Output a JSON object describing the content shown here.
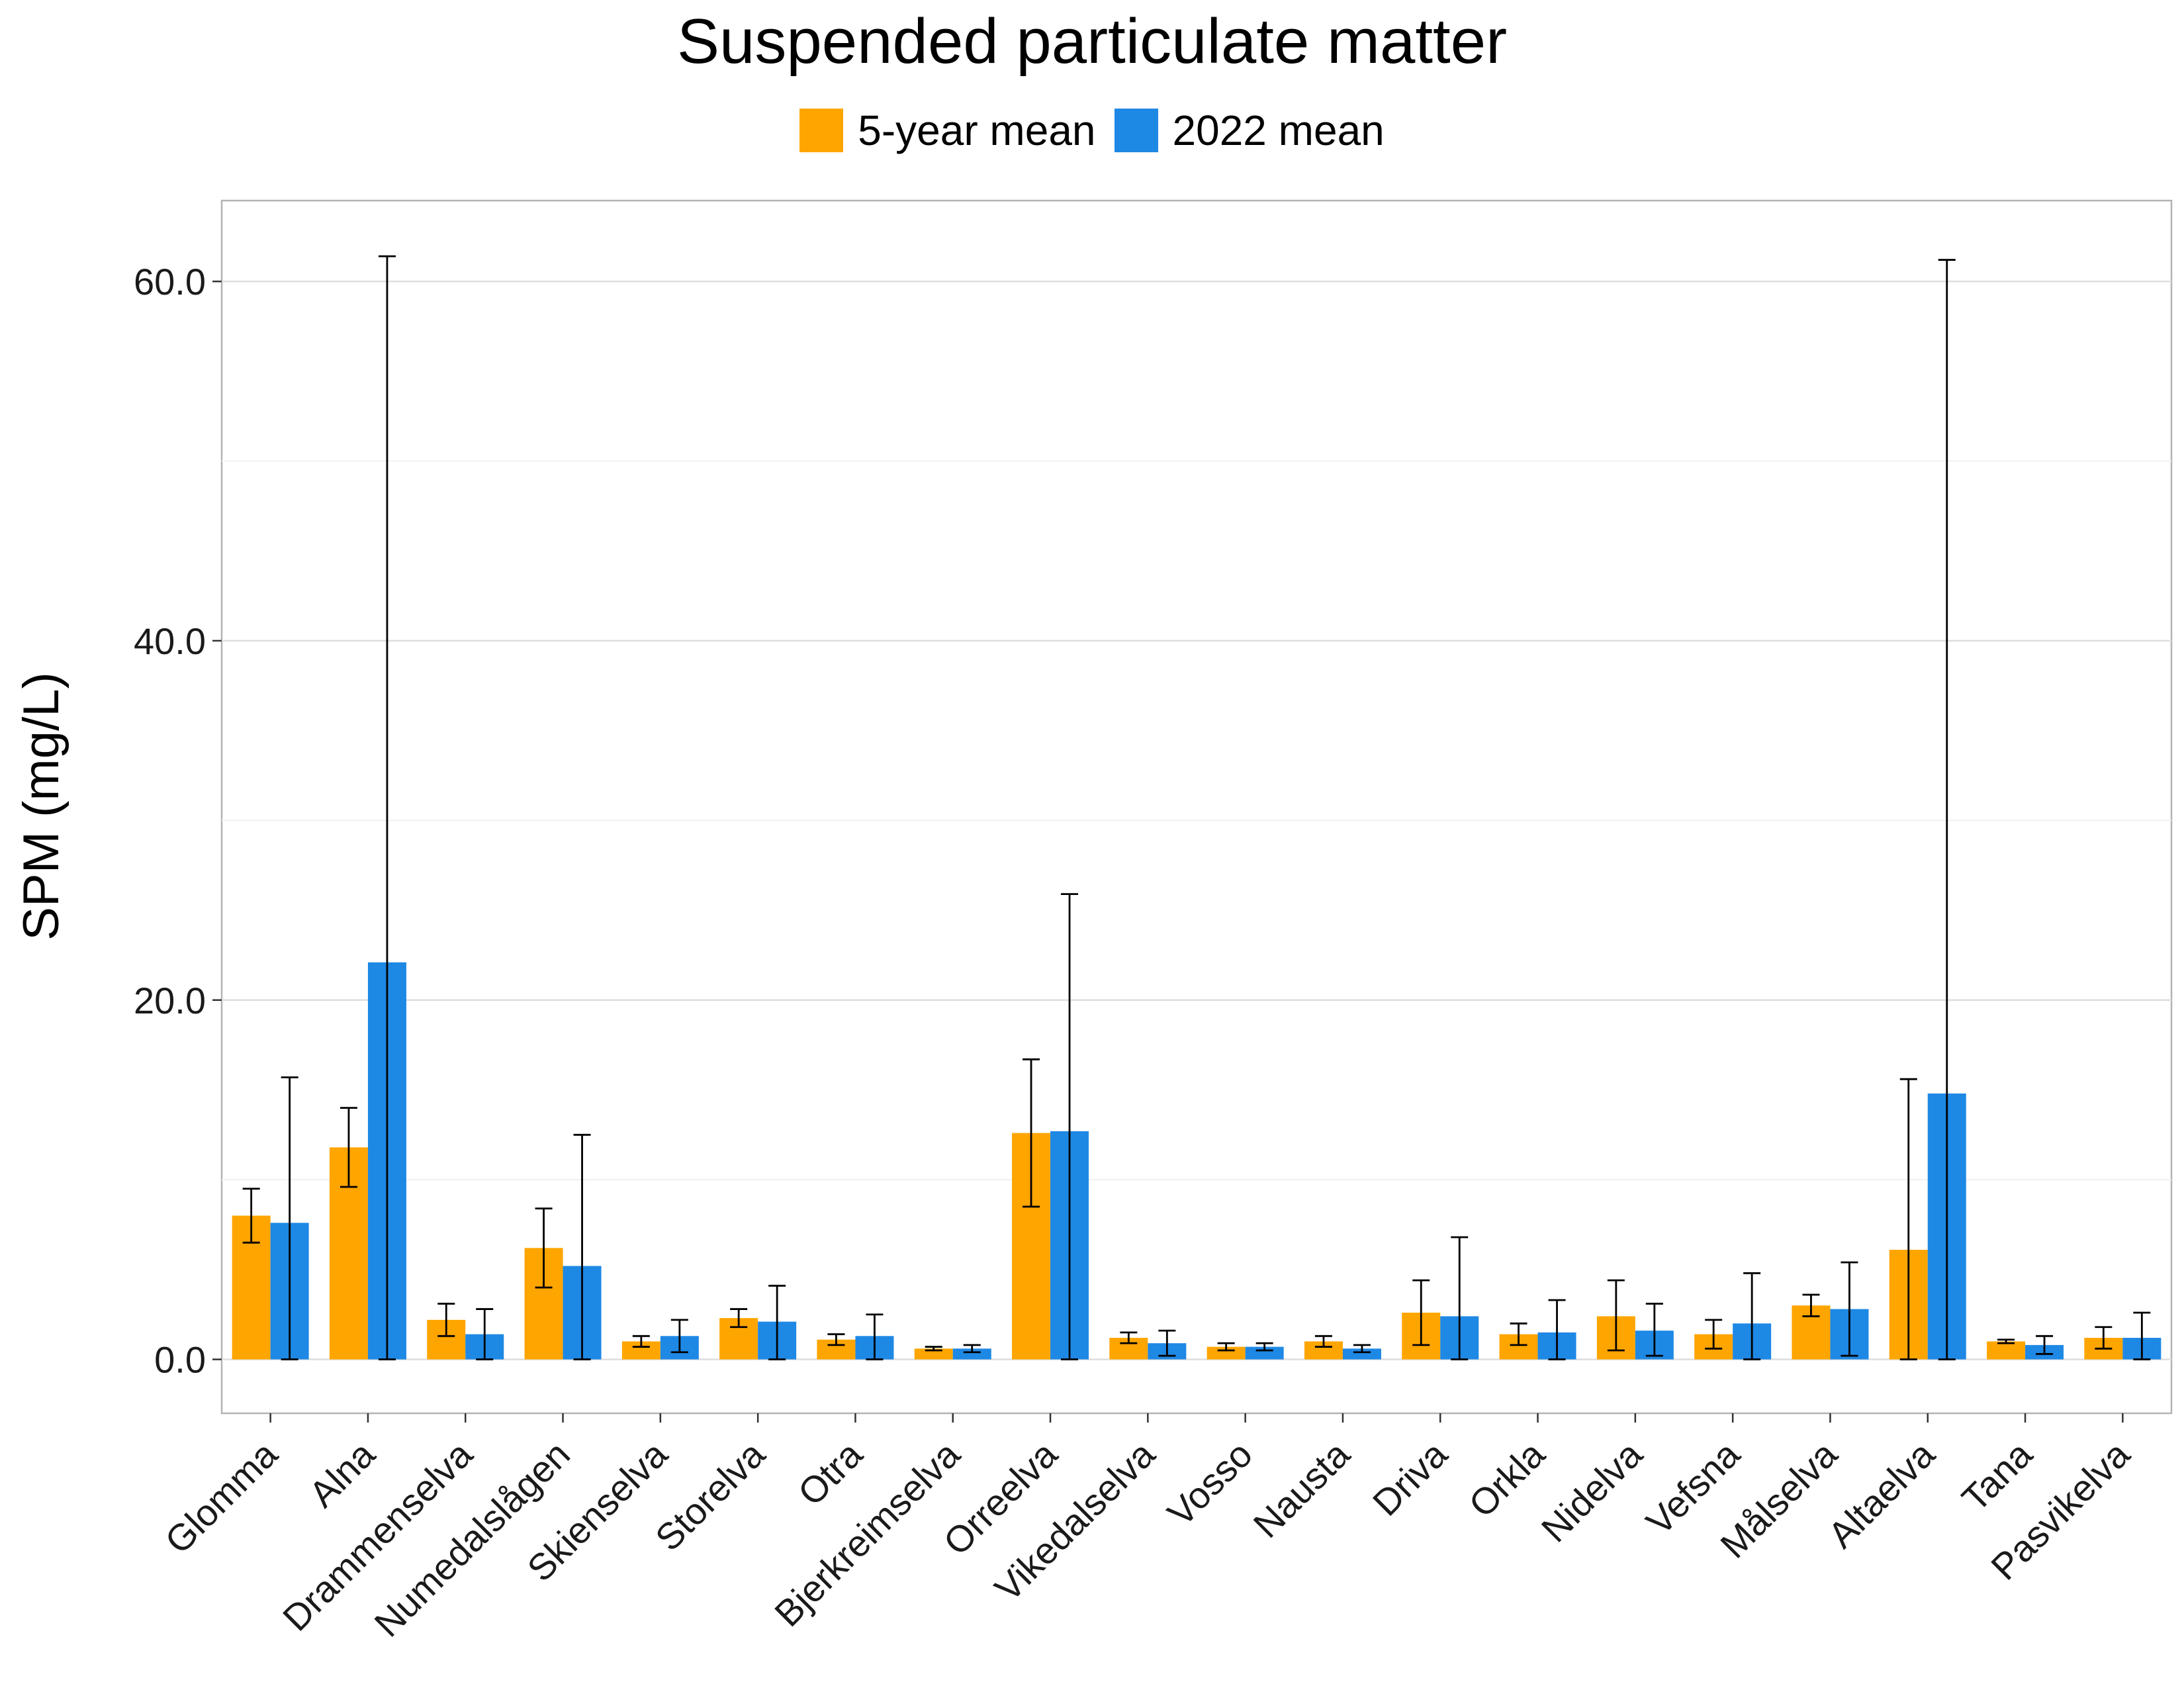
{
  "chart_data": {
    "type": "bar",
    "title": "Suspended particulate matter",
    "xlabel": "",
    "ylabel": "SPM (mg/L)",
    "ylim": [
      -3.0,
      64.5
    ],
    "yticks": [
      0,
      20,
      40,
      60
    ],
    "ytick_labels": [
      "0.0",
      "20.0",
      "40.0",
      "60.0"
    ],
    "grid": true,
    "legend_position": "top",
    "categories": [
      "Glomma",
      "Alna",
      "Drammenselva",
      "Numedalslågen",
      "Skienselva",
      "Storelva",
      "Otra",
      "Bjerkreimselva",
      "Orreelva",
      "Vikedalselva",
      "Vosso",
      "Nausta",
      "Driva",
      "Orkla",
      "Nidelva",
      "Vefsna",
      "Målselva",
      "Altaelva",
      "Tana",
      "Pasvikelva"
    ],
    "series": [
      {
        "name": "5-year mean",
        "color": "#FFA500",
        "values": [
          8.0,
          11.8,
          2.2,
          6.2,
          1.0,
          2.3,
          1.1,
          0.6,
          12.6,
          1.2,
          0.7,
          1.0,
          2.6,
          1.4,
          2.4,
          1.4,
          3.0,
          6.1,
          1.0,
          1.2
        ],
        "error_low": [
          6.5,
          9.6,
          1.3,
          4.0,
          0.7,
          1.8,
          0.8,
          0.5,
          8.5,
          0.9,
          0.5,
          0.7,
          0.8,
          0.8,
          0.5,
          0.6,
          2.4,
          0.0,
          0.9,
          0.6
        ],
        "error_high": [
          9.5,
          14.0,
          3.1,
          8.4,
          1.3,
          2.8,
          1.4,
          0.7,
          16.7,
          1.5,
          0.9,
          1.3,
          4.4,
          2.0,
          4.4,
          2.2,
          3.6,
          15.6,
          1.1,
          1.8
        ]
      },
      {
        "name": "2022 mean",
        "color": "#1E88E5",
        "values": [
          7.6,
          22.1,
          1.4,
          5.2,
          1.3,
          2.1,
          1.3,
          0.6,
          12.7,
          0.9,
          0.7,
          0.6,
          2.4,
          1.5,
          1.6,
          2.0,
          2.8,
          14.8,
          0.8,
          1.2
        ],
        "error_low": [
          0.0,
          0.0,
          0.0,
          0.0,
          0.4,
          0.0,
          0.0,
          0.4,
          0.0,
          0.2,
          0.5,
          0.4,
          0.0,
          0.0,
          0.2,
          0.0,
          0.2,
          0.0,
          0.3,
          0.0
        ],
        "error_high": [
          15.7,
          61.4,
          2.8,
          12.5,
          2.2,
          4.1,
          2.5,
          0.8,
          25.9,
          1.6,
          0.9,
          0.8,
          6.8,
          3.3,
          3.1,
          4.8,
          5.4,
          61.2,
          1.3,
          2.6
        ]
      }
    ]
  }
}
